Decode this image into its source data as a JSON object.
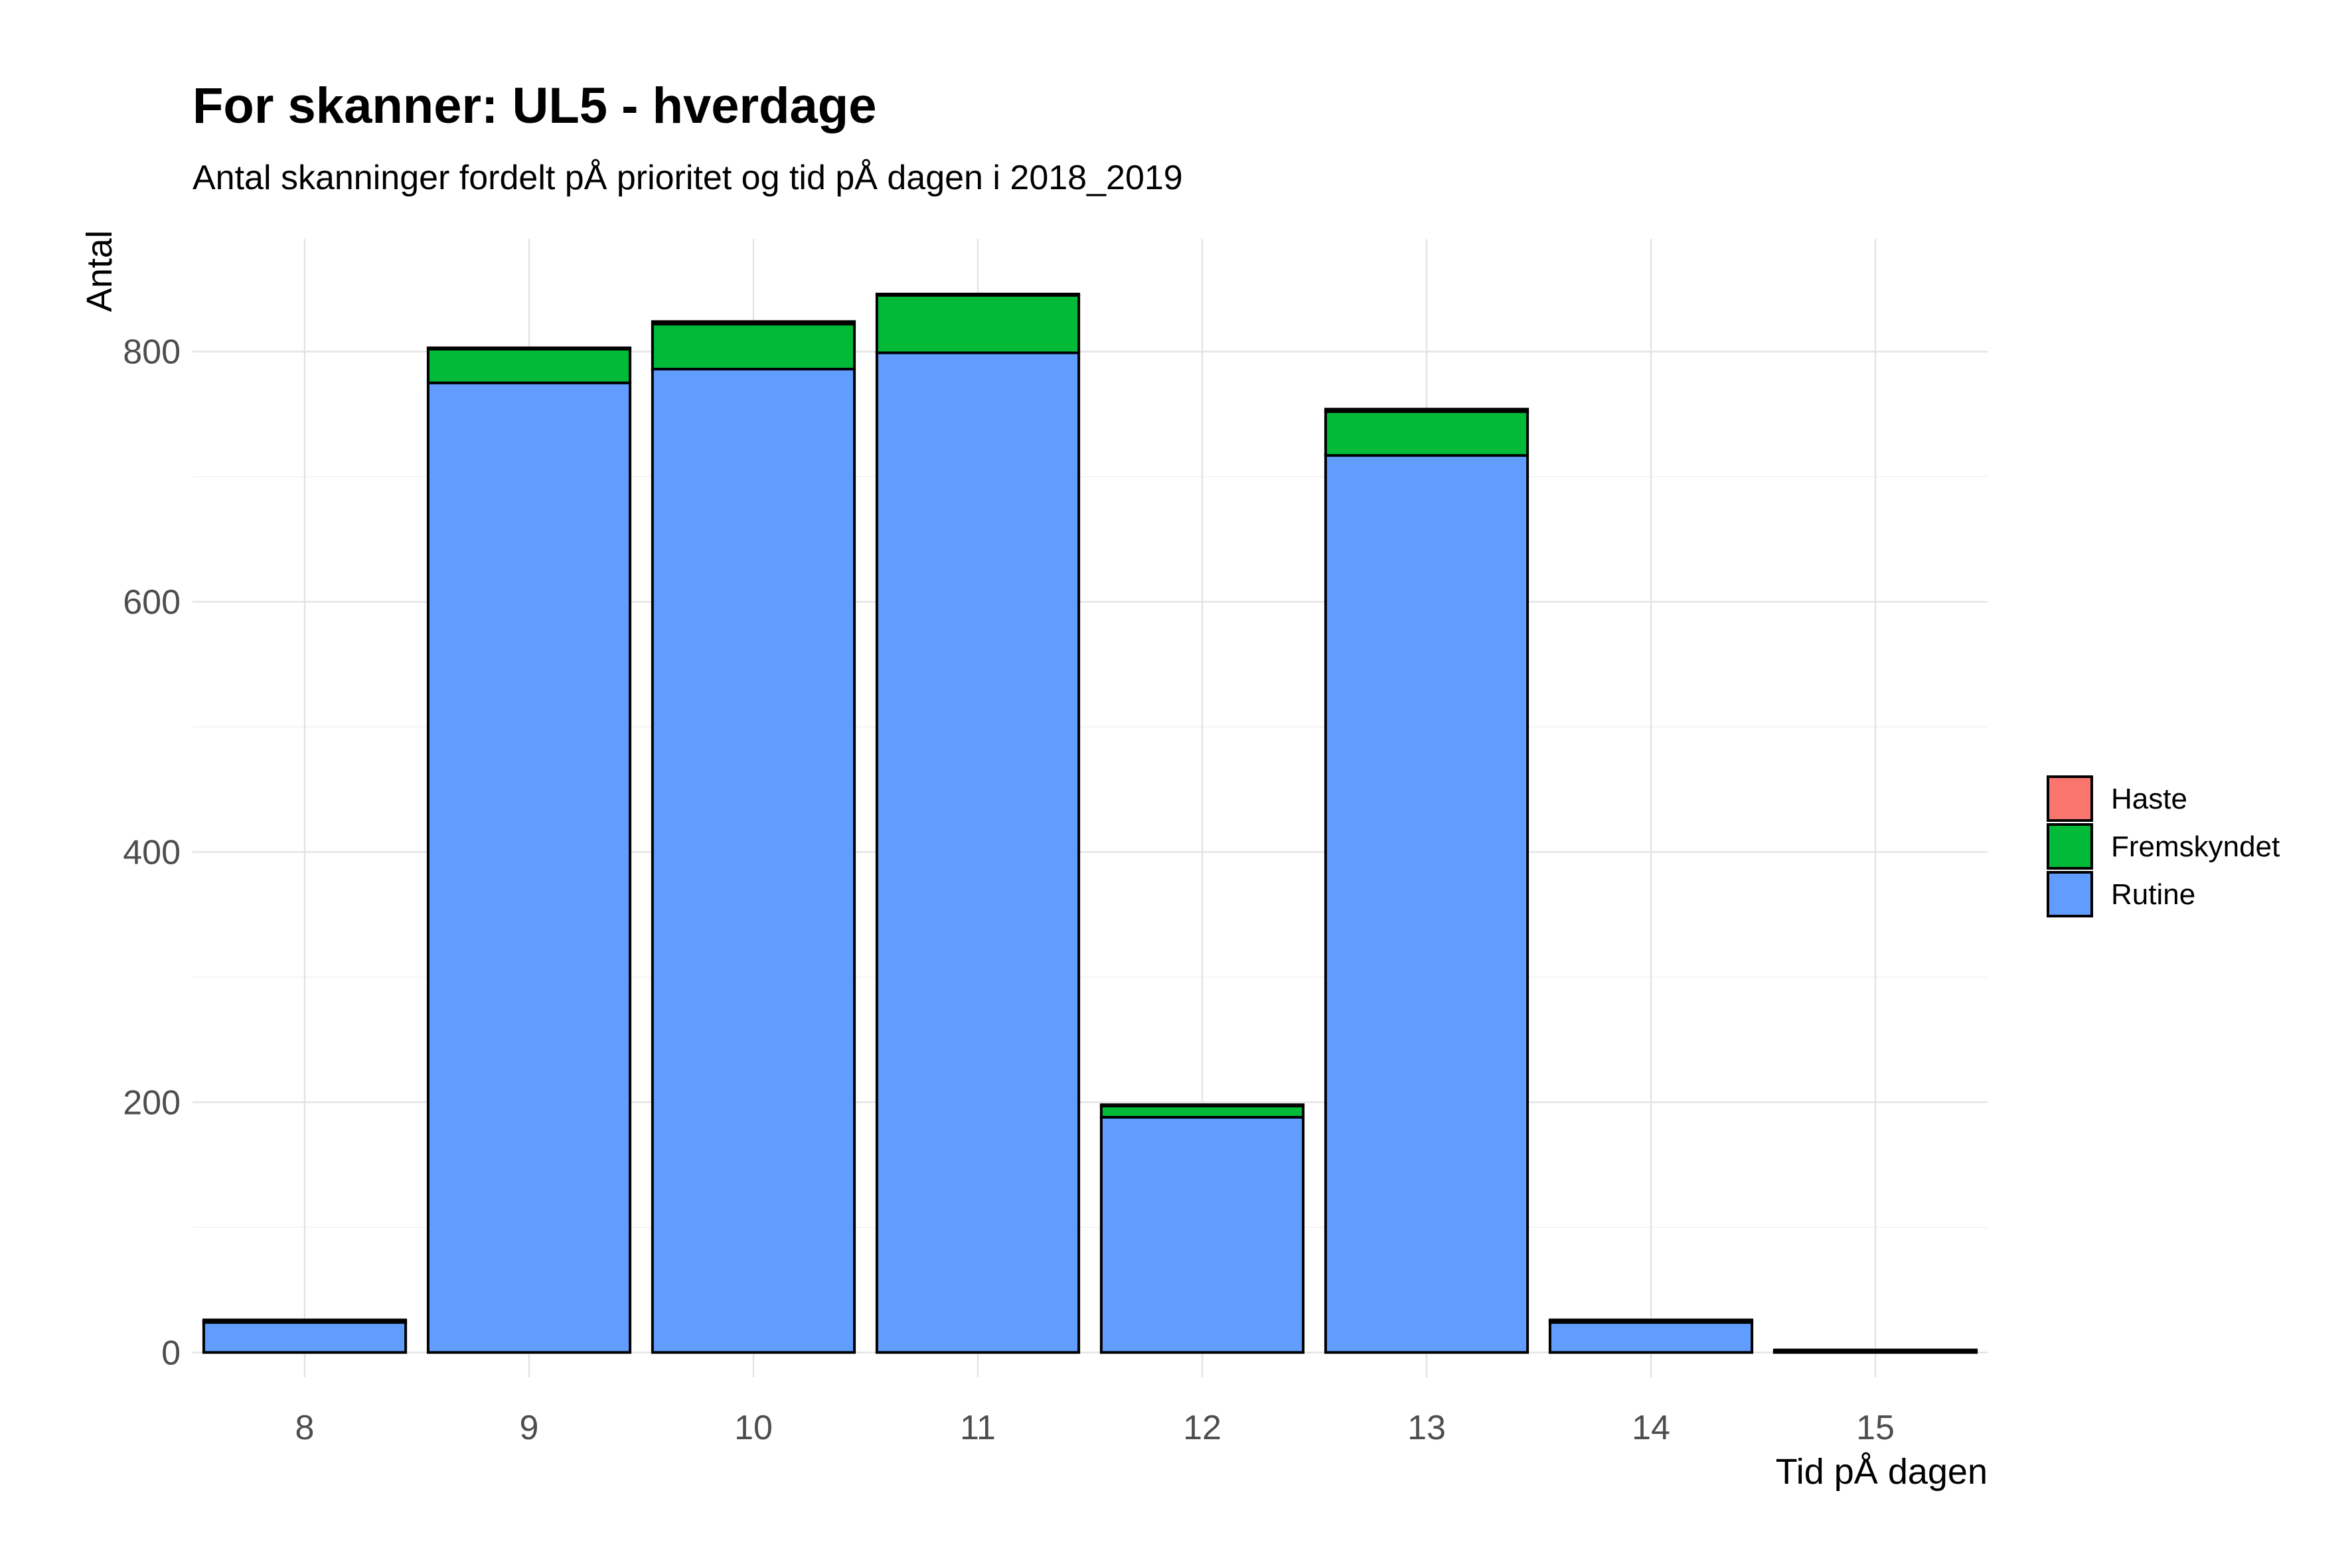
{
  "chart_data": {
    "type": "bar",
    "stacked": true,
    "title": "For skanner: UL5 - hverdage",
    "subtitle": "Antal skanninger fordelt pÅ prioritet og tid pÅ dagen i 2018_2019",
    "xlabel": "Tid pÅ dagen",
    "ylabel": "Antal",
    "categories": [
      "8",
      "9",
      "10",
      "11",
      "12",
      "13",
      "14",
      "15"
    ],
    "ylim": [
      -20,
      890
    ],
    "yticks": [
      0,
      200,
      400,
      600,
      800
    ],
    "grid": true,
    "legend_position": "right",
    "legend": [
      "Haste",
      "Fremskyndet",
      "Rutine"
    ],
    "series": [
      {
        "name": "Rutine",
        "color": "#619CFF",
        "values": [
          24,
          775,
          786,
          799,
          188,
          717,
          24,
          1
        ]
      },
      {
        "name": "Fremskyndet",
        "color": "#00BA38",
        "values": [
          1,
          27,
          36,
          46,
          9,
          35,
          1,
          0
        ]
      },
      {
        "name": "Haste",
        "color": "#F8766D",
        "values": [
          1,
          1,
          2,
          1,
          1,
          2,
          1,
          1
        ]
      }
    ]
  }
}
